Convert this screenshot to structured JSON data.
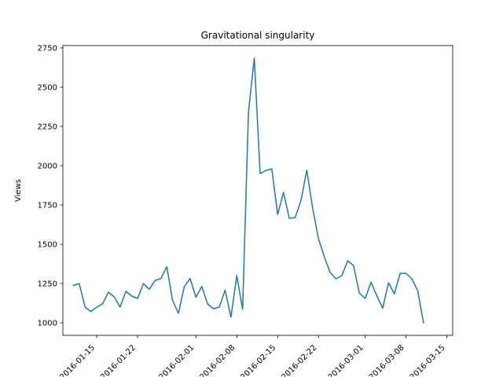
{
  "chart_data": {
    "type": "line",
    "title": "Gravitational singularity",
    "xlabel": "",
    "ylabel": "Views",
    "grid": false,
    "legend": "none",
    "line_color": "#1f77b4",
    "x_tick_labels": [
      "2016-01-15",
      "2016-01-22",
      "2016-02-01",
      "2016-02-08",
      "2016-02-15",
      "2016-02-22",
      "2016-03-01",
      "2016-03-08",
      "2016-03-15"
    ],
    "x_tick_days": [
      4,
      11,
      21,
      28,
      35,
      42,
      50,
      57,
      64
    ],
    "x_range_days": [
      -1.8,
      65
    ],
    "y_ticks": [
      1000,
      1250,
      1500,
      1750,
      2000,
      2250,
      2500,
      2750
    ],
    "y_tick_labels": [
      "1000",
      "1250",
      "1500",
      "1750",
      "2000",
      "2250",
      "2500",
      "2750"
    ],
    "ylim": [
      920,
      2765
    ],
    "start_date": "2016-01-11",
    "series": [
      {
        "name": "Views",
        "values": [
          1238,
          1250,
          1100,
          1072,
          1100,
          1120,
          1195,
          1165,
          1100,
          1200,
          1170,
          1155,
          1250,
          1213,
          1270,
          1282,
          1357,
          1143,
          1060,
          1230,
          1282,
          1163,
          1232,
          1120,
          1090,
          1100,
          1208,
          1036,
          1300,
          1086,
          2340,
          2685,
          1950,
          1970,
          1980,
          1690,
          1830,
          1665,
          1670,
          1778,
          1972,
          1730,
          1535,
          1420,
          1320,
          1280,
          1300,
          1395,
          1365,
          1190,
          1155,
          1258,
          1172,
          1093,
          1255,
          1185,
          1315,
          1315,
          1280,
          1205,
          1000
        ]
      }
    ]
  }
}
